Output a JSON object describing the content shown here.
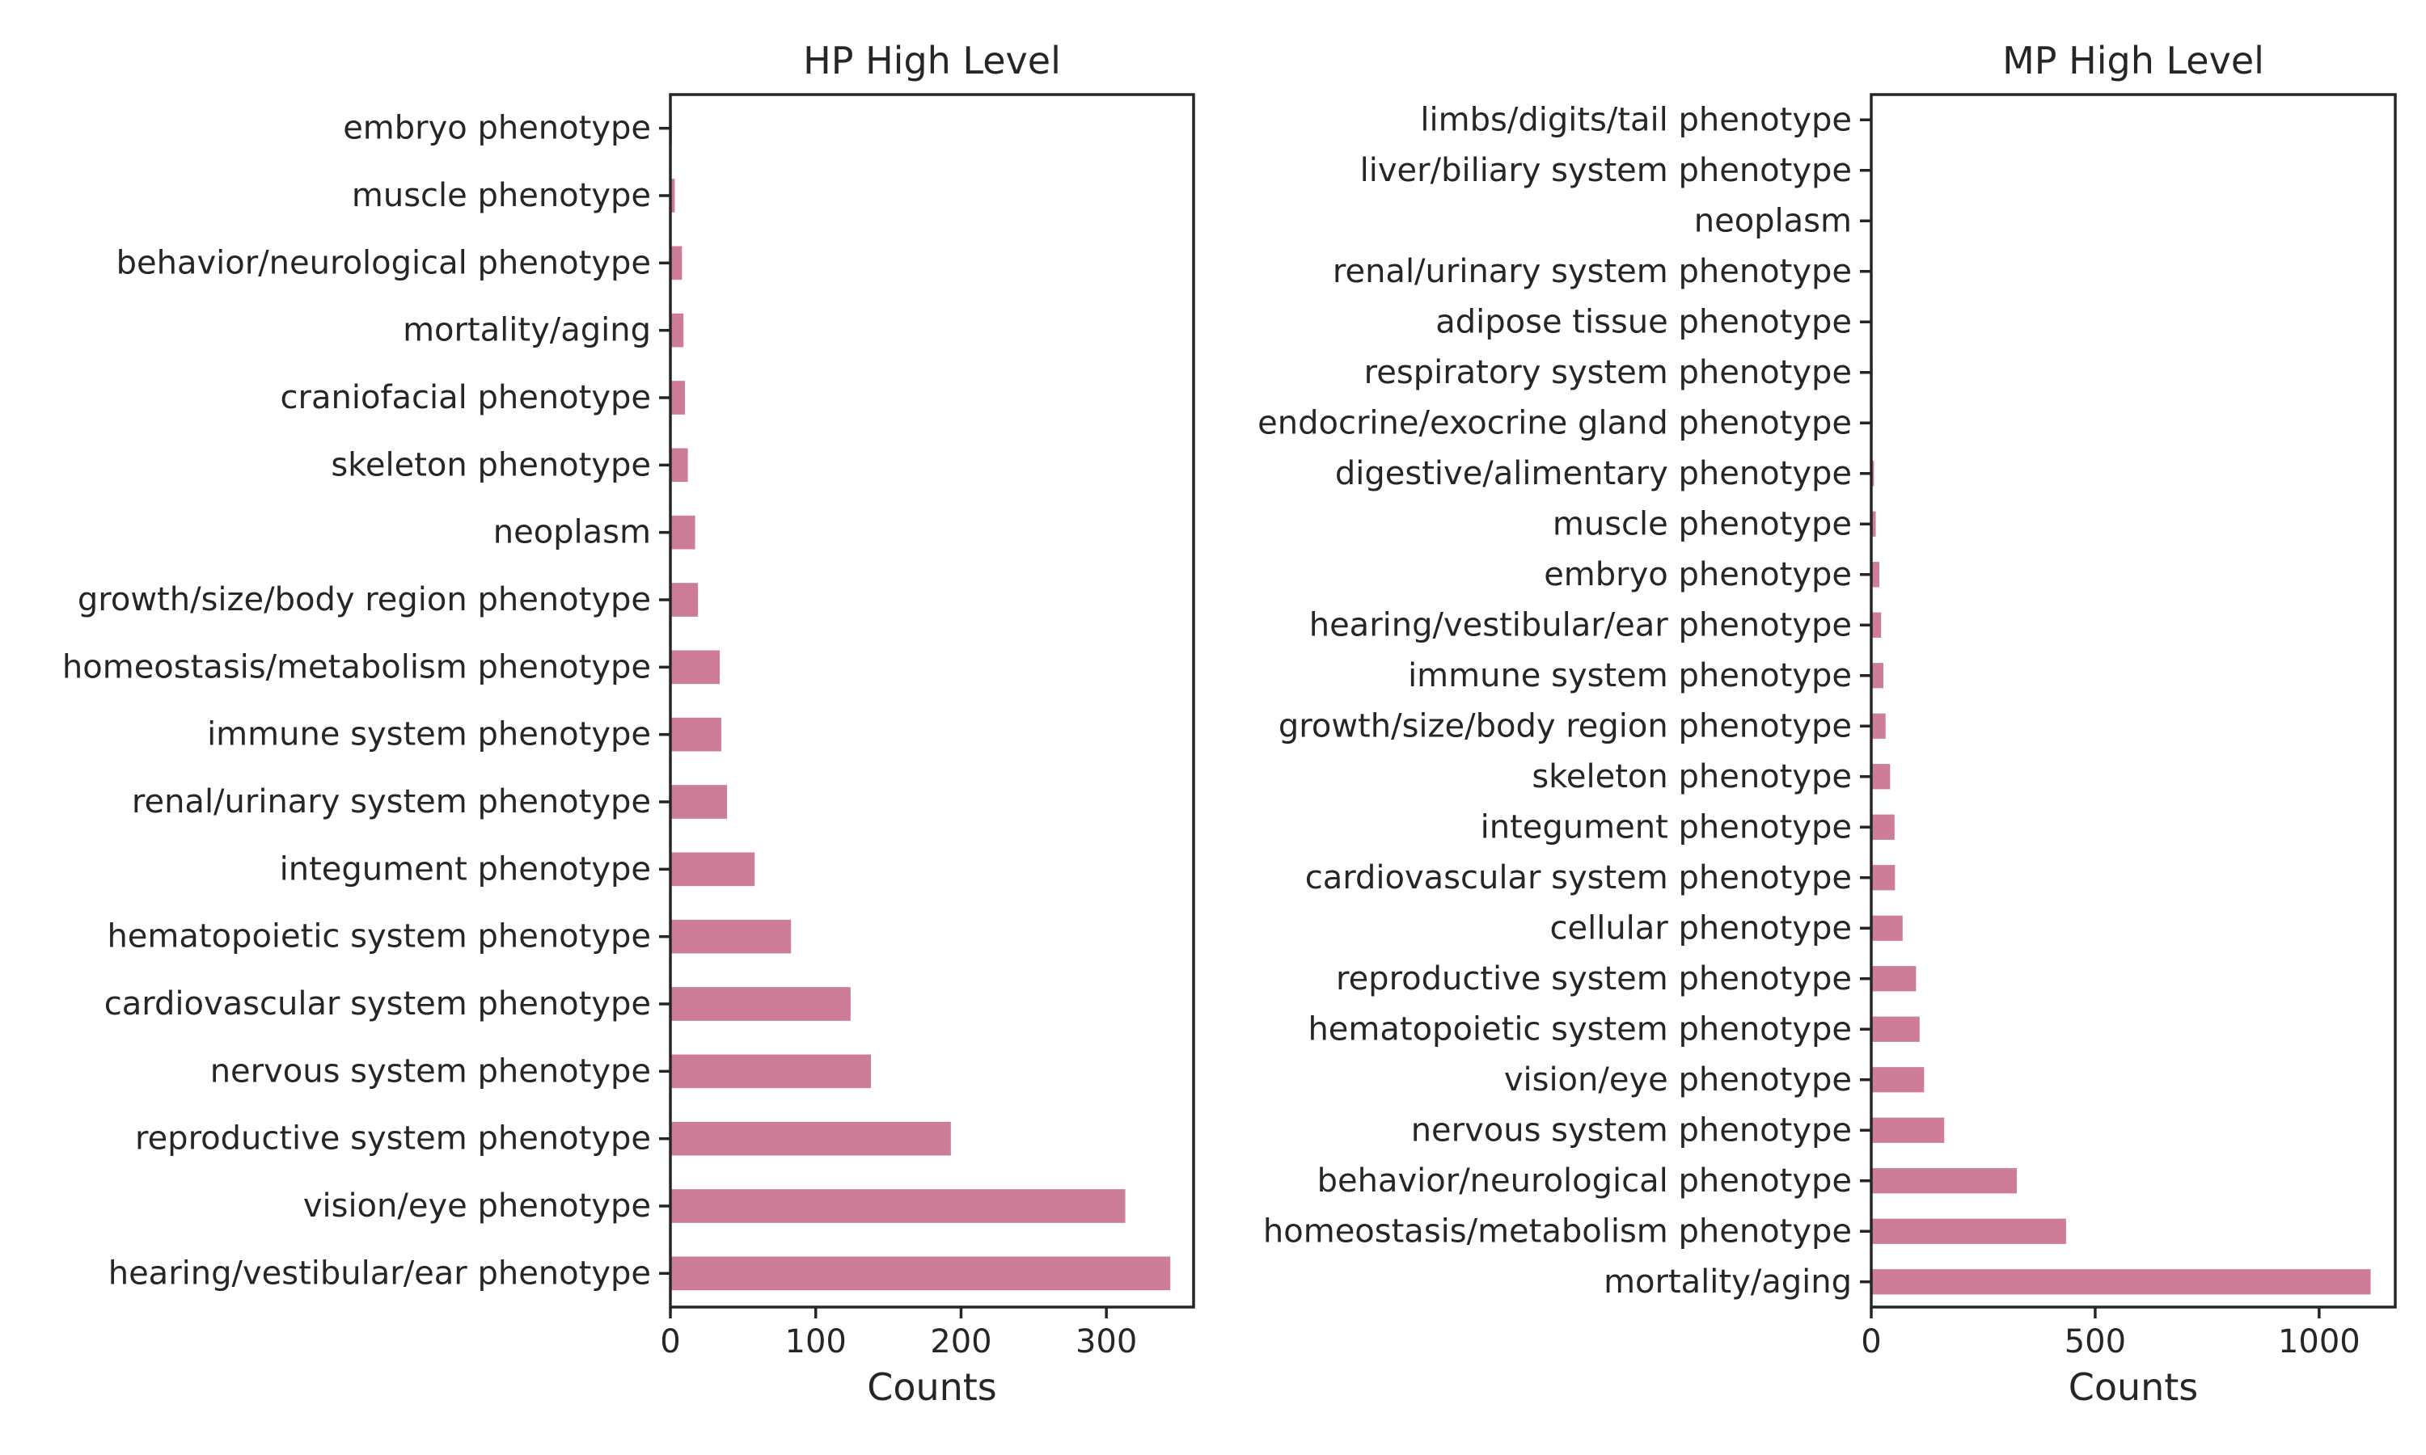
{
  "colors": {
    "bar": "#cd7d98",
    "axis": "#262626",
    "background": "#ffffff"
  },
  "chart_data": [
    {
      "type": "bar",
      "orientation": "horizontal",
      "title": "HP High Level",
      "xlabel": "Counts",
      "ylabel": "",
      "xlim": [
        0,
        360
      ],
      "xticks": [
        0,
        100,
        200,
        300
      ],
      "grid": false,
      "categories": [
        "embryo phenotype",
        "muscle phenotype",
        "behavior/neurological phenotype",
        "mortality/aging",
        "craniofacial phenotype",
        "skeleton phenotype",
        "neoplasm",
        "growth/size/body region phenotype",
        "homeostasis/metabolism phenotype",
        "immune system phenotype",
        "renal/urinary system phenotype",
        "integument phenotype",
        "hematopoietic system phenotype",
        "cardiovascular system phenotype",
        "nervous system phenotype",
        "reproductive system phenotype",
        "vision/eye phenotype",
        "hearing/vestibular/ear phenotype"
      ],
      "values": [
        1,
        3,
        8,
        9,
        10,
        12,
        17,
        19,
        34,
        35,
        39,
        58,
        83,
        124,
        138,
        193,
        313,
        344
      ]
    },
    {
      "type": "bar",
      "orientation": "horizontal",
      "title": "MP High Level",
      "xlabel": "Counts",
      "ylabel": "",
      "xlim": [
        0,
        1170
      ],
      "xticks": [
        0,
        500,
        1000
      ],
      "grid": false,
      "categories": [
        "limbs/digits/tail phenotype",
        "liver/biliary system phenotype",
        "neoplasm",
        "renal/urinary system phenotype",
        "adipose tissue phenotype",
        "respiratory system phenotype",
        "endocrine/exocrine gland phenotype",
        "digestive/alimentary phenotype",
        "muscle phenotype",
        "embryo phenotype",
        "hearing/vestibular/ear phenotype",
        "immune system phenotype",
        "growth/size/body region phenotype",
        "skeleton phenotype",
        "integument phenotype",
        "cardiovascular system phenotype",
        "cellular phenotype",
        "reproductive system phenotype",
        "hematopoietic system phenotype",
        "vision/eye phenotype",
        "nervous system phenotype",
        "behavior/neurological phenotype",
        "homeostasis/metabolism phenotype",
        "mortality/aging"
      ],
      "values": [
        1,
        1,
        1,
        2,
        2,
        3,
        3,
        6,
        10,
        18,
        22,
        27,
        32,
        42,
        52,
        53,
        70,
        100,
        108,
        118,
        163,
        325,
        435,
        1115
      ]
    }
  ]
}
